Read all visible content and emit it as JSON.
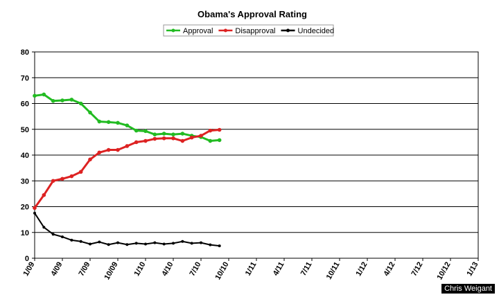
{
  "chart_data": {
    "type": "line",
    "title": "Obama's Approval Rating",
    "xlabel": "",
    "ylabel": "",
    "ylim": [
      0,
      80
    ],
    "yticks": [
      0,
      10,
      20,
      30,
      40,
      50,
      60,
      70,
      80
    ],
    "xticks": [
      "1/09",
      "4/09",
      "7/09",
      "10/09",
      "1/10",
      "4/10",
      "7/10",
      "10/10",
      "1/11",
      "4/11",
      "7/11",
      "10/11",
      "1/12",
      "4/12",
      "7/12",
      "10/12",
      "1/13"
    ],
    "grid": "horizontal",
    "legend_position": "top",
    "x": [
      0,
      0.5,
      1,
      1.5,
      2,
      2.5,
      3,
      3.5,
      4,
      4.5,
      5,
      5.5,
      6,
      6.5,
      7,
      7.5,
      8,
      8.5,
      9,
      9.5,
      10,
      10.5,
      11,
      11.5,
      12,
      12.5,
      13,
      13.5,
      14,
      14.5,
      15,
      15.5,
      16,
      16.5,
      17,
      17.5,
      18,
      18.5,
      19,
      19.5,
      20,
      20.5
    ],
    "series": [
      {
        "name": "Approval",
        "color": "#22bb22",
        "x": [
          0,
          1,
          2,
          3,
          4,
          5,
          6,
          7,
          8,
          9,
          10,
          11,
          12,
          13,
          14,
          15,
          16,
          17,
          18,
          19,
          20,
          21
        ],
        "values": [
          63.0,
          63.5,
          61.0,
          61.2,
          61.5,
          60.0,
          56.5,
          53.0,
          52.8,
          52.5,
          51.5,
          49.5,
          49.3,
          48.0,
          48.3,
          48.0,
          48.3,
          47.5,
          47.0,
          45.5,
          45.8,
          null
        ]
      },
      {
        "name": "Disapproval",
        "color": "#dd2222",
        "x": [
          0,
          1,
          2,
          3,
          4,
          5,
          6,
          7,
          8,
          9,
          10,
          11,
          12,
          13,
          14,
          15,
          16,
          17,
          18,
          19,
          20,
          21
        ],
        "values": [
          19.5,
          24.5,
          30.0,
          30.8,
          31.8,
          33.5,
          38.3,
          41.0,
          42.0,
          42.0,
          43.5,
          45.0,
          45.5,
          46.3,
          46.5,
          46.5,
          45.5,
          46.8,
          47.5,
          49.5,
          49.8,
          null
        ]
      },
      {
        "name": "Undecided",
        "color": "#000000",
        "x": [
          0,
          1,
          2,
          3,
          4,
          5,
          6,
          7,
          8,
          9,
          10,
          11,
          12,
          13,
          14,
          15,
          16,
          17,
          18,
          19,
          20,
          21
        ],
        "values": [
          17.5,
          12.0,
          9.3,
          8.3,
          7.0,
          6.5,
          5.5,
          6.3,
          5.3,
          6.0,
          5.3,
          5.8,
          5.5,
          6.0,
          5.5,
          5.8,
          6.5,
          5.8,
          6.0,
          5.2,
          4.8,
          null
        ]
      }
    ]
  },
  "credit": "Chris Weigant"
}
